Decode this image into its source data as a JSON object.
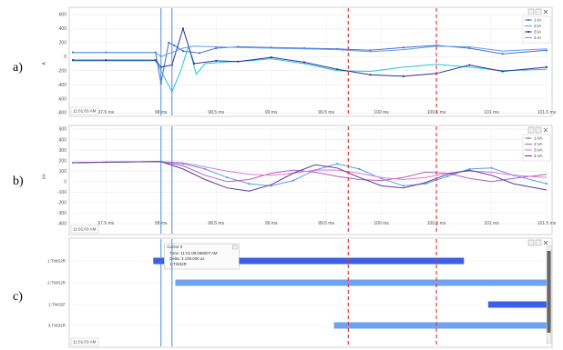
{
  "panels": [
    {
      "label": "a)",
      "ylabel": "A",
      "timestamp": "11:01:03 AM",
      "xlim": [
        97.2,
        101.5
      ],
      "ylim": [
        -800,
        600
      ],
      "yticks": [
        600,
        400,
        200,
        0,
        -200,
        -400,
        -600,
        -800
      ],
      "xticks": [
        {
          "v": 97.5,
          "t": "97.5 ms"
        },
        {
          "v": 98.0,
          "t": "98 ms"
        },
        {
          "v": 98.5,
          "t": "98.5 ms"
        },
        {
          "v": 99.0,
          "t": "99 ms"
        },
        {
          "v": 99.5,
          "t": "99.5 ms"
        },
        {
          "v": 100.0,
          "t": "100 ms"
        },
        {
          "v": 100.5,
          "t": "100.5 ms"
        },
        {
          "v": 101.0,
          "t": "101 ms"
        },
        {
          "v": 101.5,
          "t": "101.5 ms"
        }
      ],
      "legend": [
        {
          "name": "1:IA",
          "color": "#4a6fd6",
          "marker": true
        },
        {
          "name": "2:IA",
          "color": "#26c6da",
          "marker": false
        },
        {
          "name": "3:IA",
          "color": "#2b2f9e",
          "marker": true
        },
        {
          "name": "4:IA",
          "color": "#5aa0e6",
          "marker": false
        }
      ]
    },
    {
      "label": "b)",
      "ylabel": "kV",
      "timestamp": "11:01:03 AM",
      "xlim": [
        97.2,
        101.5
      ],
      "ylim": [
        -400,
        500
      ],
      "yticks": [
        500,
        400,
        300,
        200,
        100,
        0,
        -100,
        -200,
        -300,
        -400
      ],
      "xticks": [
        {
          "v": 97.5,
          "t": "97.5 ms"
        },
        {
          "v": 98.0,
          "t": "98 ms"
        },
        {
          "v": 98.5,
          "t": "98.5 ms"
        },
        {
          "v": 99.0,
          "t": "99 ms"
        },
        {
          "v": 99.5,
          "t": "99.5 ms"
        },
        {
          "v": 100.0,
          "t": "100 ms"
        },
        {
          "v": 100.5,
          "t": "100.5 ms"
        },
        {
          "v": 101.0,
          "t": "101 ms"
        },
        {
          "v": 101.5,
          "t": "101.5 ms"
        }
      ],
      "legend": [
        {
          "name": "1:VA",
          "color": "#5aa0e6",
          "marker": true
        },
        {
          "name": "2:VA",
          "color": "#b060c8",
          "marker": false
        },
        {
          "name": "3:VA",
          "color": "#e07ad0",
          "marker": false
        },
        {
          "name": "4:VA",
          "color": "#5a3a9a",
          "marker": false
        }
      ]
    },
    {
      "label": "c)",
      "timestamp": "11:01:03 AM",
      "xlim": [
        97.2,
        101.5
      ],
      "categories": [
        "1:TWS2R",
        "2:TWS2R",
        "1:TW32F",
        "3:TW32R"
      ],
      "cursor_title": "Cursor 0",
      "tooltip_lines": [
        "Time: 11:01:09.098007 AM",
        "Delta: 3.139.000 us",
        "1:TW32R"
      ]
    }
  ],
  "chart_data": [
    {
      "type": "line",
      "ylabel": "A",
      "xlim": [
        97.2,
        101.5
      ],
      "ylim": [
        -800,
        600
      ],
      "cursors": [
        98.0,
        98.1
      ],
      "markers": [
        99.7,
        100.5
      ],
      "series": [
        {
          "name": "1:IA",
          "color": "#4a6fd6",
          "x": [
            97.2,
            97.5,
            97.95,
            98.0,
            98.07,
            98.12,
            98.2,
            98.35,
            98.5,
            98.7,
            99.0,
            99.3,
            99.6,
            99.9,
            100.2,
            100.5,
            100.8,
            101.1,
            101.5
          ],
          "y": [
            60,
            60,
            60,
            -380,
            200,
            160,
            80,
            50,
            120,
            140,
            130,
            120,
            110,
            90,
            130,
            160,
            120,
            40,
            90
          ]
        },
        {
          "name": "2:IA",
          "color": "#26c6da",
          "x": [
            97.2,
            97.5,
            97.95,
            98.0,
            98.1,
            98.18,
            98.25,
            98.32,
            98.4,
            98.55,
            98.8,
            99.0,
            99.3,
            99.6,
            99.9,
            100.2,
            100.5,
            100.8,
            101.1,
            101.5
          ],
          "y": [
            -60,
            -60,
            -60,
            -200,
            -500,
            -200,
            150,
            -250,
            -100,
            -80,
            -60,
            -30,
            -100,
            -200,
            -210,
            -150,
            -110,
            -150,
            -200,
            -180
          ]
        },
        {
          "name": "3:IA",
          "color": "#2b2f9e",
          "x": [
            97.2,
            97.5,
            97.95,
            98.0,
            98.1,
            98.2,
            98.3,
            98.5,
            98.7,
            99.0,
            99.3,
            99.6,
            99.9,
            100.2,
            100.5,
            100.8,
            101.1,
            101.5
          ],
          "y": [
            -50,
            -50,
            -50,
            -150,
            -120,
            400,
            -100,
            -60,
            -70,
            -10,
            -80,
            -180,
            -260,
            -280,
            -240,
            -120,
            -210,
            -150
          ]
        },
        {
          "name": "4:IA",
          "color": "#5aa0e6",
          "x": [
            97.2,
            97.5,
            97.95,
            98.0,
            98.1,
            98.2,
            98.3,
            98.5,
            98.7,
            99.0,
            99.3,
            99.6,
            99.9,
            100.2,
            100.5,
            100.8,
            101.1,
            101.5
          ],
          "y": [
            60,
            60,
            60,
            0,
            60,
            120,
            150,
            140,
            130,
            120,
            110,
            100,
            70,
            100,
            150,
            140,
            80,
            110
          ]
        }
      ]
    },
    {
      "type": "line",
      "ylabel": "kV",
      "xlim": [
        97.2,
        101.5
      ],
      "ylim": [
        -400,
        500
      ],
      "cursors": [
        98.0,
        98.1
      ],
      "markers": [
        99.7,
        100.5
      ],
      "series": [
        {
          "name": "1:VA",
          "color": "#5aa0e6",
          "x": [
            97.2,
            97.5,
            98.0,
            98.2,
            98.4,
            98.6,
            98.8,
            99.0,
            99.2,
            99.4,
            99.6,
            99.8,
            100.0,
            100.2,
            100.4,
            100.6,
            100.8,
            101.0,
            101.2,
            101.5
          ],
          "y": [
            180,
            185,
            190,
            170,
            120,
            40,
            -20,
            -40,
            10,
            110,
            170,
            120,
            30,
            -40,
            -20,
            50,
            120,
            130,
            60,
            -20
          ]
        },
        {
          "name": "2:VA",
          "color": "#b060c8",
          "x": [
            97.2,
            97.5,
            98.0,
            98.2,
            98.4,
            98.6,
            98.8,
            99.0,
            99.2,
            99.4,
            99.6,
            99.8,
            100.0,
            100.2,
            100.4,
            100.6,
            100.8,
            101.0,
            101.2,
            101.5
          ],
          "y": [
            180,
            185,
            190,
            150,
            60,
            0,
            20,
            80,
            110,
            90,
            50,
            20,
            10,
            40,
            90,
            80,
            30,
            0,
            30,
            70
          ]
        },
        {
          "name": "3:VA",
          "color": "#e07ad0",
          "x": [
            97.2,
            97.5,
            98.0,
            98.2,
            98.4,
            98.6,
            98.8,
            99.0,
            99.2,
            99.4,
            99.6,
            99.8,
            100.0,
            100.2,
            100.4,
            100.6,
            100.8,
            101.0,
            101.2,
            101.5
          ],
          "y": [
            180,
            185,
            190,
            180,
            140,
            100,
            70,
            60,
            80,
            110,
            110,
            80,
            40,
            20,
            40,
            80,
            100,
            90,
            60,
            40
          ]
        },
        {
          "name": "4:VA",
          "color": "#5a3a9a",
          "x": [
            97.2,
            97.5,
            98.0,
            98.2,
            98.4,
            98.6,
            98.8,
            99.0,
            99.2,
            99.4,
            99.6,
            99.8,
            100.0,
            100.2,
            100.4,
            100.6,
            100.8,
            101.0,
            101.2,
            101.5
          ],
          "y": [
            180,
            185,
            190,
            120,
            20,
            -60,
            -90,
            -30,
            80,
            160,
            130,
            40,
            -40,
            -60,
            -10,
            70,
            110,
            60,
            -20,
            -80
          ]
        }
      ]
    },
    {
      "type": "bar",
      "orientation": "horizontal-timeline",
      "xlim": [
        97.2,
        101.5
      ],
      "cursors": [
        98.0,
        98.1
      ],
      "markers": [
        99.7,
        100.5
      ],
      "categories": [
        "1:TWS2R",
        "2:TWS2R",
        "1:TW32F",
        "3:TW32R"
      ],
      "bars": [
        {
          "category": "1:TWS2R",
          "start": 97.93,
          "end": 100.75,
          "color": "#3d5ee6"
        },
        {
          "category": "2:TWS2R",
          "start": 98.13,
          "end": 101.5,
          "color": "#6fa3ef"
        },
        {
          "category": "1:TW32F",
          "start": 100.97,
          "end": 101.5,
          "color": "#3d5ee6"
        },
        {
          "category": "3:TW32R",
          "start": 99.57,
          "end": 101.5,
          "color": "#6fa3ef"
        }
      ]
    }
  ]
}
